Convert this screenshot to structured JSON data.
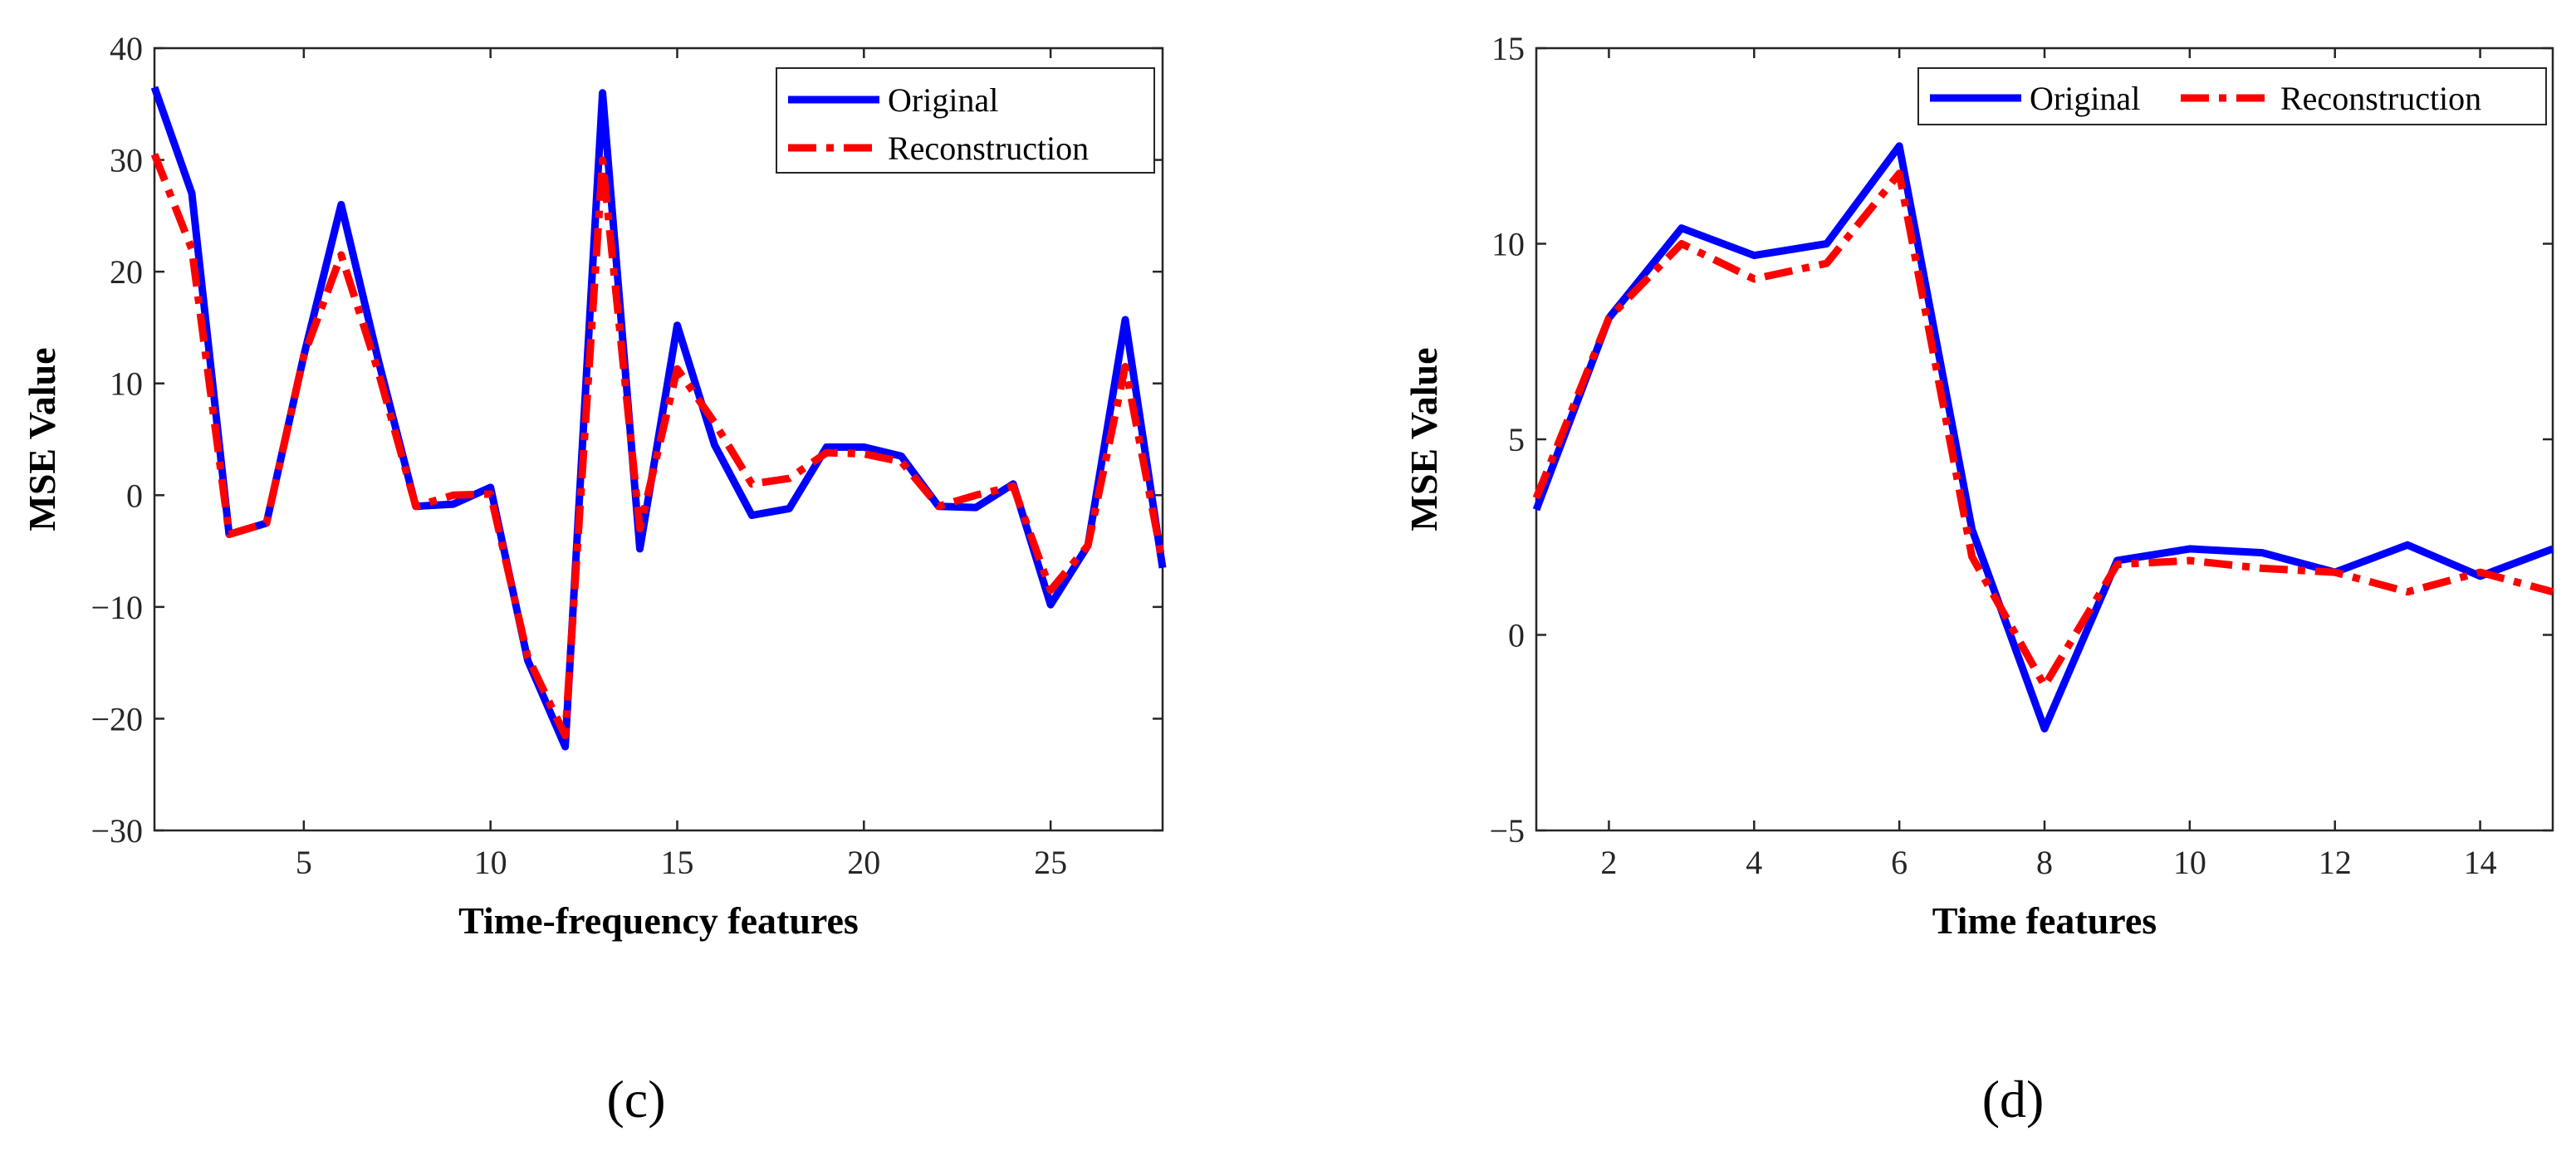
{
  "colors": {
    "original": "#0000ff",
    "reconstruction": "#ff0000"
  },
  "chart_data": [
    {
      "type": "line",
      "panel_label": "(c)",
      "xlabel": "Time-frequency features",
      "ylabel": "MSE Value",
      "xlim": [
        1,
        28
      ],
      "ylim": [
        -30,
        40
      ],
      "xticks": [
        5,
        10,
        15,
        20,
        25
      ],
      "yticks": [
        -30,
        -20,
        -10,
        0,
        10,
        20,
        30,
        40
      ],
      "ytick_labels": [
        "−30",
        "−20",
        "−10",
        "0",
        "10",
        "20",
        "30",
        "40"
      ],
      "legend": "top-right",
      "x": [
        1,
        2,
        3,
        4,
        5,
        6,
        7,
        8,
        9,
        10,
        11,
        12,
        13,
        14,
        15,
        16,
        17,
        18,
        19,
        20,
        21,
        22,
        23,
        24,
        25,
        26,
        27,
        28
      ],
      "series": [
        {
          "name": "Original",
          "color": "#0000ff",
          "style": "solid",
          "values": [
            36.5,
            27,
            -3.5,
            -2.5,
            12.5,
            26,
            12,
            -1,
            -0.8,
            0.7,
            -14.8,
            -22.5,
            36,
            -4.8,
            15.2,
            4.5,
            -1.8,
            -1.2,
            4.3,
            4.3,
            3.5,
            -1,
            -1.1,
            1,
            -9.8,
            -4.5,
            15.7,
            -6.5
          ]
        },
        {
          "name": "Reconstruction",
          "color": "#ff0000",
          "style": "dashdot",
          "values": [
            30.5,
            22,
            -3.5,
            -2.5,
            12.5,
            21.5,
            11,
            -1,
            0,
            0.1,
            -14.5,
            -21.5,
            30,
            -3,
            11.3,
            6.5,
            1,
            1.5,
            3.8,
            3.7,
            3,
            -1,
            0,
            0.8,
            -8.5,
            -4.5,
            11.5,
            -6
          ]
        }
      ]
    },
    {
      "type": "line",
      "panel_label": "(d)",
      "xlabel": "Time features",
      "ylabel": "MSE Value",
      "xlim": [
        1,
        15
      ],
      "ylim": [
        -5,
        15
      ],
      "xticks": [
        2,
        4,
        6,
        8,
        10,
        12,
        14
      ],
      "yticks": [
        -5,
        0,
        5,
        10,
        15
      ],
      "ytick_labels": [
        "−5",
        "0",
        "5",
        "10",
        "15"
      ],
      "legend": "top-right",
      "x": [
        1,
        2,
        3,
        4,
        5,
        6,
        7,
        8,
        9,
        10,
        11,
        12,
        13,
        14,
        15
      ],
      "series": [
        {
          "name": "Original",
          "color": "#0000ff",
          "style": "solid",
          "values": [
            3.2,
            8.1,
            10.4,
            9.7,
            10,
            12.5,
            2.7,
            -2.4,
            1.9,
            2.2,
            2.1,
            1.6,
            2.3,
            1.5,
            2.2
          ]
        },
        {
          "name": "Reconstruction",
          "color": "#ff0000",
          "style": "dashdot",
          "values": [
            3.5,
            8.1,
            10,
            9.1,
            9.5,
            11.8,
            2,
            -1.3,
            1.8,
            1.9,
            1.7,
            1.6,
            1.1,
            1.6,
            1.1
          ]
        }
      ]
    }
  ]
}
